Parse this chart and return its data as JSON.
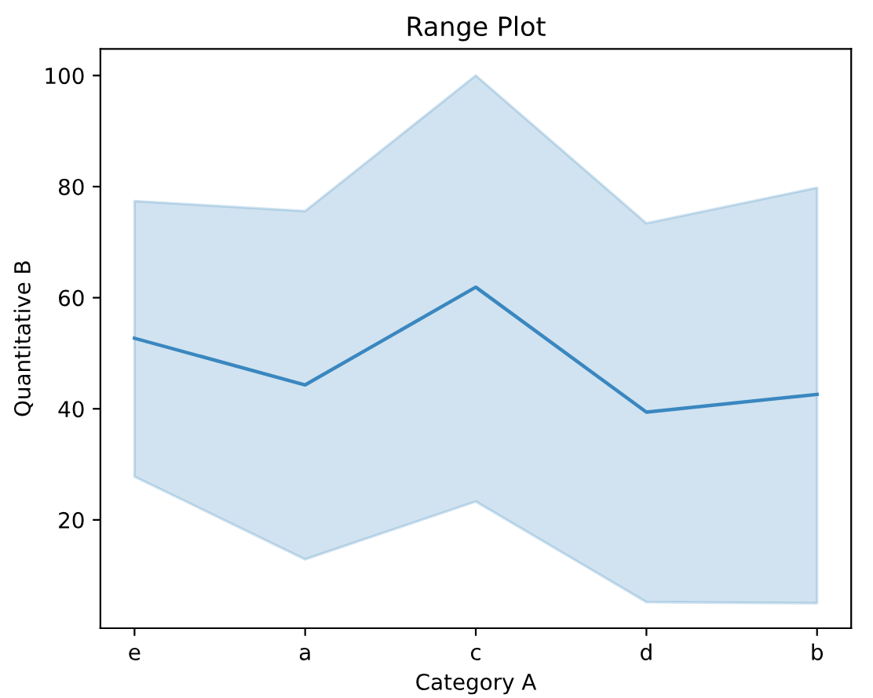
{
  "chart_data": {
    "type": "line",
    "title": "Range Plot",
    "xlabel": "Category A",
    "ylabel": "Quantitative B",
    "categories": [
      "e",
      "a",
      "c",
      "d",
      "b"
    ],
    "series": [
      {
        "color": "#3a87c0",
        "values": [
          52.7,
          44.3,
          61.9,
          39.4,
          42.6
        ],
        "lower": [
          27.8,
          12.9,
          23.3,
          5.2,
          5.0
        ],
        "upper": [
          77.4,
          75.6,
          100.0,
          73.4,
          79.8
        ]
      }
    ],
    "ylim": [
      0.5,
      104.8
    ],
    "yticks": [
      20,
      40,
      60,
      80,
      100
    ],
    "grid": false,
    "legend": false
  }
}
